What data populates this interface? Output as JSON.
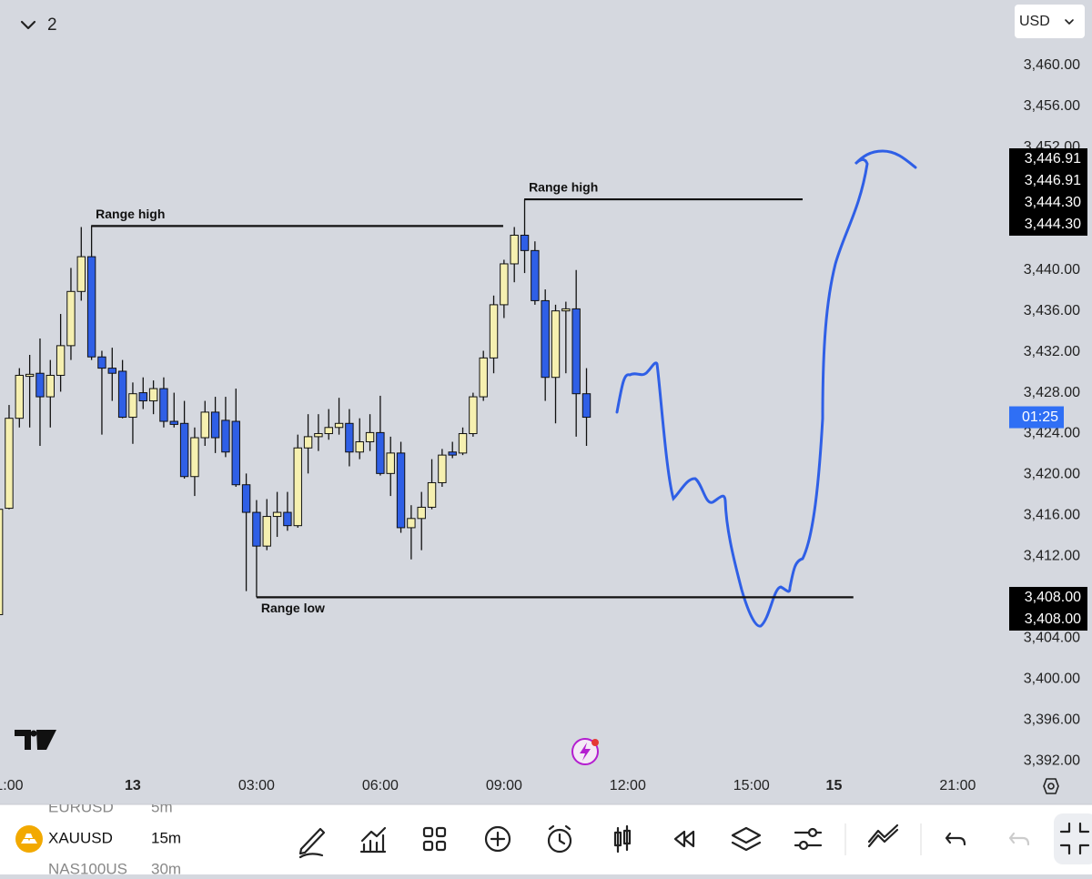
{
  "chart_data": {
    "type": "candlestick",
    "x": [
      -3.25,
      -3,
      -2.75,
      -2.5,
      -2.25,
      -2,
      -1.75,
      -1.5,
      -1.25,
      -1,
      -0.75,
      -0.5,
      -0.25,
      0,
      0.25,
      0.5,
      0.75,
      1,
      1.25,
      1.5,
      1.75,
      2,
      2.25,
      2.5,
      2.75,
      3,
      3.25,
      3.5,
      3.75,
      4,
      4.25,
      4.5,
      4.75,
      5,
      5.25,
      5.5,
      5.75,
      6,
      6.25,
      6.5,
      6.75,
      7,
      7.25,
      7.5,
      7.75,
      8,
      8.25,
      8.5,
      8.75,
      9,
      9.25,
      9.5,
      9.75,
      10,
      10.25,
      10.5,
      10.75,
      11
    ],
    "open": [
      3406.3,
      3416.7,
      3425.5,
      3429.6,
      3429.9,
      3427.6,
      3429.7,
      3432.6,
      3437.9,
      3441.3,
      3431.5,
      3430.4,
      3430.1,
      3425.6,
      3428.0,
      3427.2,
      3428.4,
      3425.2,
      3425.0,
      3419.8,
      3423.6,
      3426.1,
      3425.3,
      3425.2,
      3419.0,
      3416.3,
      3413.0,
      3415.9,
      3416.3,
      3415.0,
      3422.6,
      3423.7,
      3424.0,
      3424.6,
      3425.0,
      3422.2,
      3423.2,
      3424.1,
      3420.1,
      3422.1,
      3414.8,
      3415.7,
      3416.8,
      3419.2,
      3422.2,
      3422.1,
      3424.0,
      3427.6,
      3431.4,
      3436.6,
      3440.6,
      3443.4,
      3441.9,
      3437.0,
      3429.5,
      3436.0,
      3436.2,
      3427.9
    ],
    "high": [
      3416.8,
      3426.8,
      3430.4,
      3431.7,
      3433.3,
      3431.2,
      3435.7,
      3440.2,
      3444.2,
      3444.3,
      3432.1,
      3432.4,
      3431.2,
      3429.0,
      3429.5,
      3429.2,
      3429.5,
      3428.0,
      3427.2,
      3424.6,
      3427.2,
      3427.6,
      3427.6,
      3428.4,
      3420.1,
      3417.5,
      3417.6,
      3418.3,
      3418.3,
      3423.9,
      3425.9,
      3425.9,
      3426.4,
      3427.5,
      3426.4,
      3425.5,
      3425.9,
      3427.7,
      3423.7,
      3423.2,
      3417.0,
      3418.3,
      3421.5,
      3422.5,
      3423.2,
      3424.6,
      3428.0,
      3432.1,
      3437.5,
      3441.0,
      3444.2,
      3446.91,
      3442.8,
      3438.1,
      3436.6,
      3436.9,
      3440.0,
      3430.4
    ],
    "low": [
      3406.2,
      3416.6,
      3424.6,
      3424.6,
      3422.8,
      3424.6,
      3428.1,
      3431.2,
      3437.0,
      3431.2,
      3423.9,
      3427.2,
      3425.5,
      3423.0,
      3426.4,
      3425.9,
      3424.6,
      3424.6,
      3419.6,
      3417.9,
      3422.8,
      3422.1,
      3421.7,
      3418.8,
      3408.6,
      3408.0,
      3412.6,
      3413.9,
      3414.5,
      3414.8,
      3420.1,
      3422.3,
      3423.4,
      3423.9,
      3420.8,
      3421.5,
      3422.3,
      3419.9,
      3417.9,
      3414.3,
      3411.7,
      3412.6,
      3416.6,
      3418.8,
      3421.6,
      3421.9,
      3423.7,
      3427.2,
      3429.9,
      3435.3,
      3438.8,
      3439.7,
      3436.6,
      3427.2,
      3425.0,
      3429.9,
      3423.7,
      3422.8
    ],
    "close": [
      3416.6,
      3425.5,
      3429.7,
      3429.8,
      3427.6,
      3429.7,
      3432.6,
      3437.9,
      3441.3,
      3431.5,
      3430.4,
      3429.9,
      3425.6,
      3427.9,
      3427.2,
      3428.4,
      3425.2,
      3424.9,
      3419.8,
      3423.6,
      3426.1,
      3423.6,
      3422.2,
      3419.0,
      3416.3,
      3413.0,
      3415.9,
      3416.3,
      3415.0,
      3422.6,
      3423.7,
      3424.0,
      3424.6,
      3425.0,
      3422.2,
      3423.2,
      3424.1,
      3420.1,
      3422.1,
      3414.8,
      3415.7,
      3416.8,
      3419.2,
      3421.9,
      3421.9,
      3424.0,
      3427.6,
      3431.4,
      3436.6,
      3440.6,
      3443.4,
      3441.9,
      3437.0,
      3429.5,
      3436.0,
      3436.2,
      3427.9,
      3425.6
    ],
    "up_color": "#f6f0b0",
    "down_color": "#2f5fe6",
    "xlim": [
      -3.22,
      21.16
    ],
    "xticks": [
      {
        "value": -3,
        "label": "1:00"
      },
      {
        "value": 0,
        "label": "13"
      },
      {
        "value": 3,
        "label": "03:00"
      },
      {
        "value": 6,
        "label": "06:00"
      },
      {
        "value": 9,
        "label": "09:00"
      },
      {
        "value": 12,
        "label": "12:00"
      },
      {
        "value": 15,
        "label": "15:00"
      },
      {
        "value": 17,
        "label": "15"
      },
      {
        "value": 20,
        "label": "21:00"
      }
    ],
    "ylim": [
      3388.1,
      3466.4
    ],
    "yticks": [
      {
        "value": 3392,
        "label": "3,392.00"
      },
      {
        "value": 3396,
        "label": "3,396.00"
      },
      {
        "value": 3400,
        "label": "3,400.00"
      },
      {
        "value": 3404,
        "label": "3,404.00"
      },
      {
        "value": 3408,
        "label": "3,408.00"
      },
      {
        "value": 3412,
        "label": "3,412.00"
      },
      {
        "value": 3416,
        "label": "3,416.00"
      },
      {
        "value": 3420,
        "label": "3,420.00"
      },
      {
        "value": 3424,
        "label": "3,424.00"
      },
      {
        "value": 3428,
        "label": "3,428.00"
      },
      {
        "value": 3432,
        "label": "3,432.00"
      },
      {
        "value": 3436,
        "label": "3,436.00"
      },
      {
        "value": 3440,
        "label": "3,440.00"
      },
      {
        "value": 3444,
        "label": "3,444.00"
      },
      {
        "value": 3448,
        "label": "3,448.00"
      },
      {
        "value": 3452,
        "label": "3,452.00"
      },
      {
        "value": 3456,
        "label": "3,456.00"
      },
      {
        "value": 3460,
        "label": "3,460.00"
      }
    ],
    "annotations": [
      {
        "text": "Range high",
        "value": 3444.3,
        "x": [
          -1.01,
          8.98
        ]
      },
      {
        "text": "Range high",
        "value": 3446.91,
        "x": [
          9.49,
          16.24
        ]
      },
      {
        "text": "Range low",
        "value": 3408.0,
        "x": [
          3.0,
          17.47
        ]
      }
    ],
    "price_labels": [
      {
        "value": 3446.91,
        "label": "3,446.91"
      },
      {
        "value": 3446.91,
        "label": "3,446.91"
      },
      {
        "value": 3444.3,
        "label": "3,444.30"
      },
      {
        "value": 3444.3,
        "label": "3,444.30"
      },
      {
        "value": 3408.0,
        "label": "3,408.00"
      },
      {
        "value": 3408.0,
        "label": "3,408.00"
      }
    ],
    "countdown": "01:25"
  },
  "ui": {
    "layout_count": 2,
    "currency": "USD",
    "symbols": [
      {
        "symbol": "EURUSD",
        "interval": "5m"
      },
      {
        "symbol": "XAUUSD",
        "interval": "15m"
      },
      {
        "symbol": "NAS100US",
        "interval": "30m"
      }
    ]
  }
}
